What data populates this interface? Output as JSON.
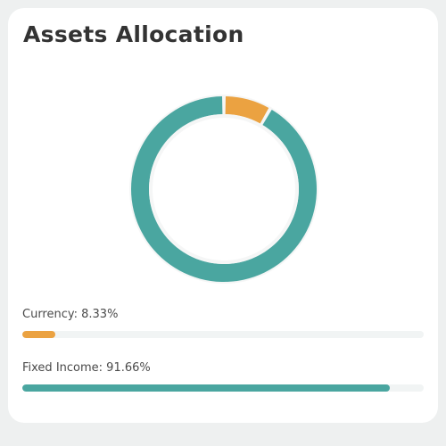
{
  "card": {
    "title": "Assets Allocation"
  },
  "allocation": [
    {
      "label": "Currency: 8.33%",
      "name": "Currency",
      "percent": 8.33,
      "color": "#eba241"
    },
    {
      "label": "Fixed Income: 91.66%",
      "name": "Fixed Income",
      "percent": 91.66,
      "color": "#4aa6a0"
    }
  ],
  "chart_data": {
    "type": "pie",
    "variant": "donut",
    "categories": [
      "Currency",
      "Fixed Income"
    ],
    "values": [
      8.33,
      91.66
    ],
    "colors": [
      "#eba241",
      "#4aa6a0"
    ]
  },
  "colors": {
    "track": "#f1f4f4",
    "ring_background": "#f5f6f6"
  }
}
